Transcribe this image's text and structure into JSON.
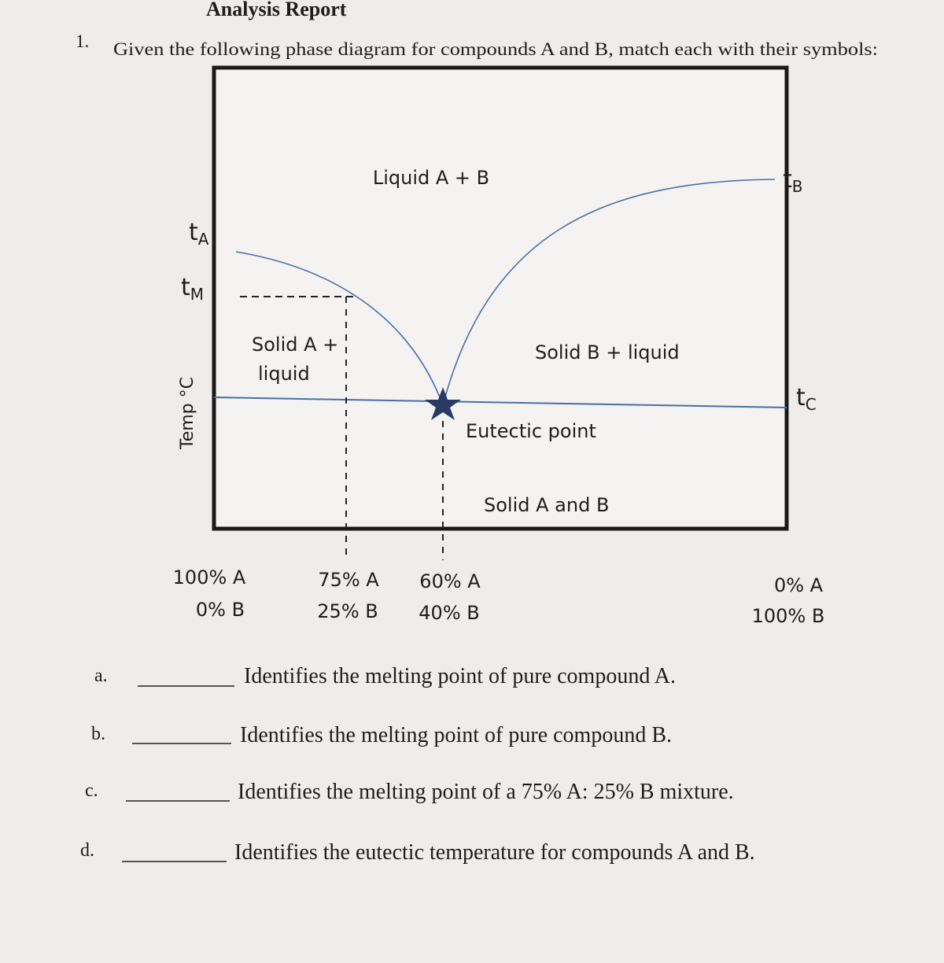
{
  "header": {
    "title": "Analysis Report"
  },
  "question": {
    "number": "1.",
    "text": "Given the following phase diagram for compounds A and B, match each with their symbols:"
  },
  "diagram": {
    "symbols": [
      {
        "base": "t",
        "sub": "A"
      },
      {
        "base": "t",
        "sub": "M"
      },
      {
        "base": "t",
        "sub": "B"
      },
      {
        "base": "t",
        "sub": "C"
      }
    ],
    "y_axis_label": "Temp °C",
    "regions": {
      "liquid": "Liquid A + B",
      "solid_a_liquid": [
        "Solid A +",
        "liquid"
      ],
      "solid_b_liquid": "Solid B + liquid",
      "eutectic": "Eutectic point",
      "solid": "Solid A and B"
    },
    "compositions": [
      [
        "100% A",
        "0% B"
      ],
      [
        "75% A",
        "25% B"
      ],
      [
        "60% A",
        "40% B"
      ],
      [
        "0% A",
        "100% B"
      ]
    ]
  },
  "items": [
    {
      "letter": "a.",
      "text": "Identifies the melting point of pure compound A."
    },
    {
      "letter": "b.",
      "text": "Identifies the melting point of pure compound B."
    },
    {
      "letter": "c.",
      "text": "Identifies the melting point of a 75% A: 25% B mixture."
    },
    {
      "letter": "d.",
      "text": "Identifies the eutectic temperature for compounds A and B."
    }
  ]
}
